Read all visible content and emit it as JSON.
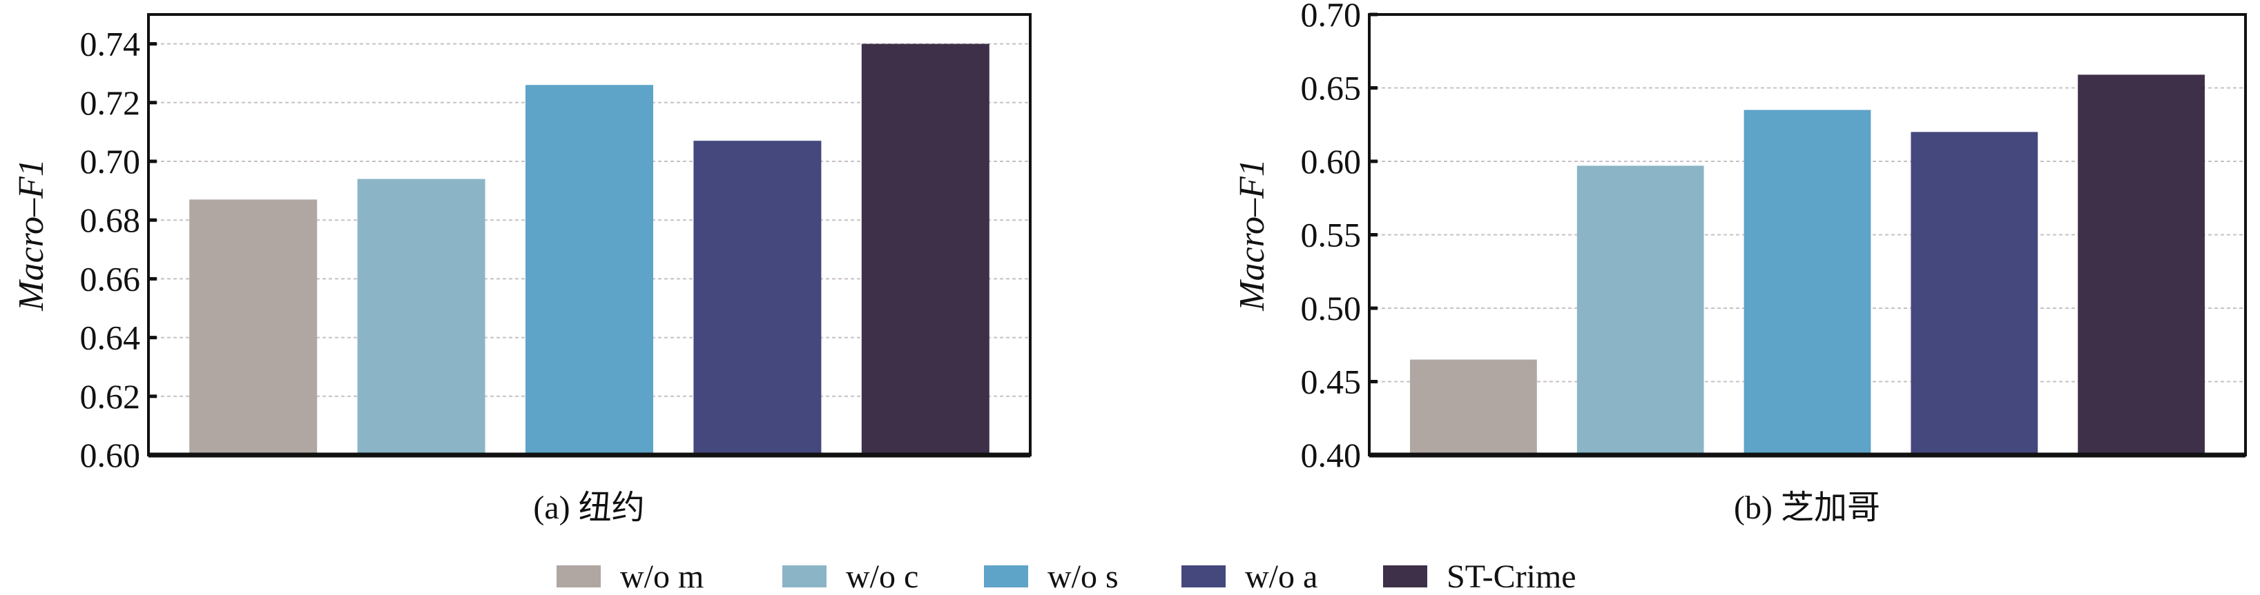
{
  "chart_data": [
    {
      "type": "bar",
      "title": "(a) 纽约",
      "xlabel": "",
      "ylabel": "Macro–F1",
      "categories": [
        "w/o m",
        "w/o c",
        "w/o s",
        "w/o a",
        "ST-Crime"
      ],
      "values": [
        0.687,
        0.694,
        0.726,
        0.707,
        0.74
      ],
      "ylim": [
        0.6,
        0.75
      ],
      "yticks": [
        0.6,
        0.62,
        0.64,
        0.66,
        0.68,
        0.7,
        0.72,
        0.74
      ],
      "ytick_labels": [
        "0.60",
        "0.62",
        "0.64",
        "0.66",
        "0.68",
        "0.70",
        "0.72",
        "0.74"
      ],
      "grid": true
    },
    {
      "type": "bar",
      "title": "(b) 芝加哥",
      "xlabel": "",
      "ylabel": "Macro–F1",
      "categories": [
        "w/o m",
        "w/o c",
        "w/o s",
        "w/o a",
        "ST-Crime"
      ],
      "values": [
        0.465,
        0.597,
        0.635,
        0.62,
        0.659
      ],
      "ylim": [
        0.4,
        0.7
      ],
      "yticks": [
        0.4,
        0.45,
        0.5,
        0.55,
        0.6,
        0.65,
        0.7
      ],
      "ytick_labels": [
        "0.40",
        "0.45",
        "0.50",
        "0.55",
        "0.60",
        "0.65",
        "0.70"
      ],
      "grid": true
    }
  ],
  "legend": {
    "placement": "bottom-center",
    "items": [
      {
        "label": "w/o m",
        "color": "#b0a6a2"
      },
      {
        "label": "w/o c",
        "color": "#8bb5c6"
      },
      {
        "label": "w/o s",
        "color": "#5ea3c8"
      },
      {
        "label": "w/o a",
        "color": "#44487d"
      },
      {
        "label": "ST-Crime",
        "color": "#3f3049"
      }
    ]
  }
}
